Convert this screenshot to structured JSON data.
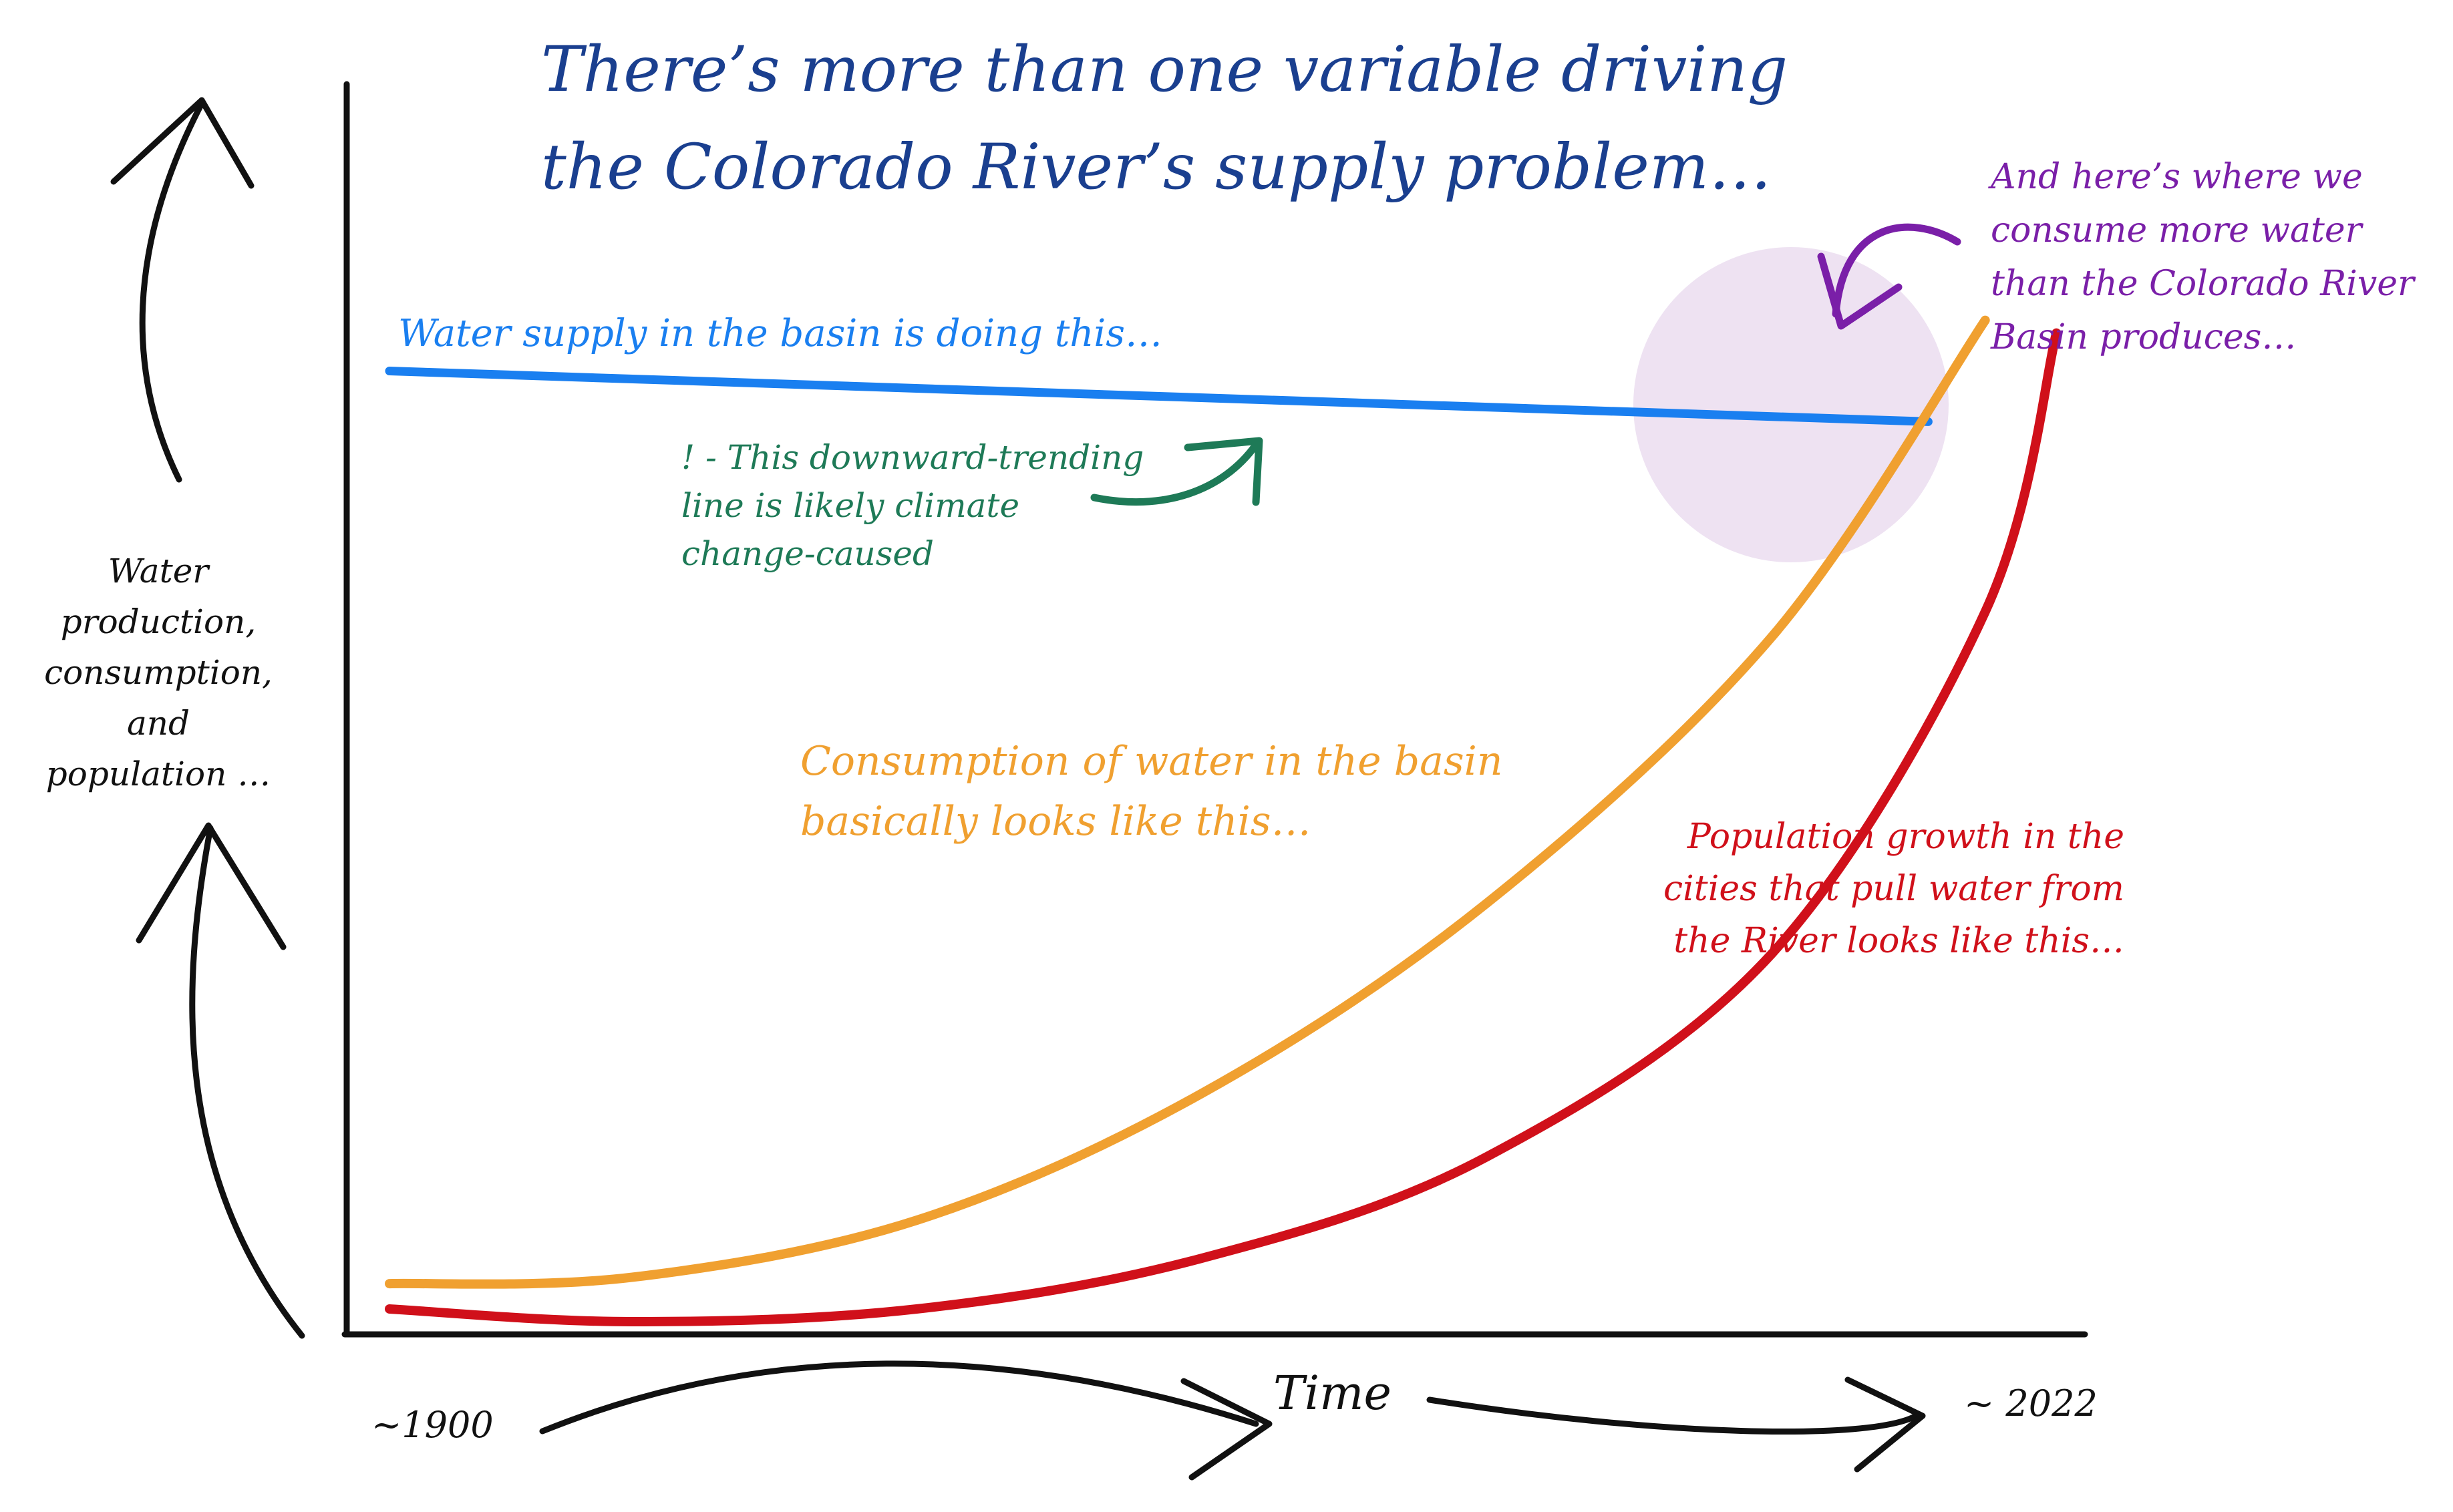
{
  "chart_data": {
    "type": "line",
    "title": [
      "There’s more than one variable driving",
      "the Colorado River’s supply problem…"
    ],
    "xlabel": "Time",
    "ylabel": [
      "Water",
      "production,",
      "consumption,",
      "and",
      "population …"
    ],
    "x_ticks": [
      "~1900",
      "~ 2022"
    ],
    "xlim": [
      1900,
      2022
    ],
    "ylim": [
      0,
      100
    ],
    "colors": {
      "supply": "#1a7ff0",
      "consumption": "#f0a030",
      "population": "#d0101a",
      "highlight": "#eee2f2",
      "note": "#1e7a57",
      "annotation": "#7a1fa8",
      "title": "#1a3f8f"
    },
    "series": [
      {
        "key": "supply",
        "x": [
          1903,
          2011
        ],
        "y": [
          76,
          72
        ]
      },
      {
        "key": "consumption",
        "x": [
          1903,
          1920,
          1940,
          1960,
          1980,
          2000,
          2015
        ],
        "y": [
          4,
          4.5,
          9,
          19,
          34,
          55,
          80
        ]
      },
      {
        "key": "population",
        "x": [
          1903,
          1920,
          1940,
          1960,
          1980,
          2000,
          2015,
          2020
        ],
        "y": [
          2,
          1,
          2,
          6,
          14,
          30,
          57,
          79
        ]
      }
    ],
    "annotations": {
      "supply": [
        "Water supply in the basin is doing this…"
      ],
      "note": [
        "! - This downward-trending",
        "line is likely climate",
        "change-caused"
      ],
      "consumption": [
        "Consumption of water in the basin",
        "basically looks like this…"
      ],
      "population": [
        "Population growth in the",
        "cities that pull water from",
        "the River looks like this…"
      ],
      "crossover": [
        "And here’s where we",
        "consume more water",
        "than the Colorado River",
        "Basin produces…"
      ]
    }
  }
}
